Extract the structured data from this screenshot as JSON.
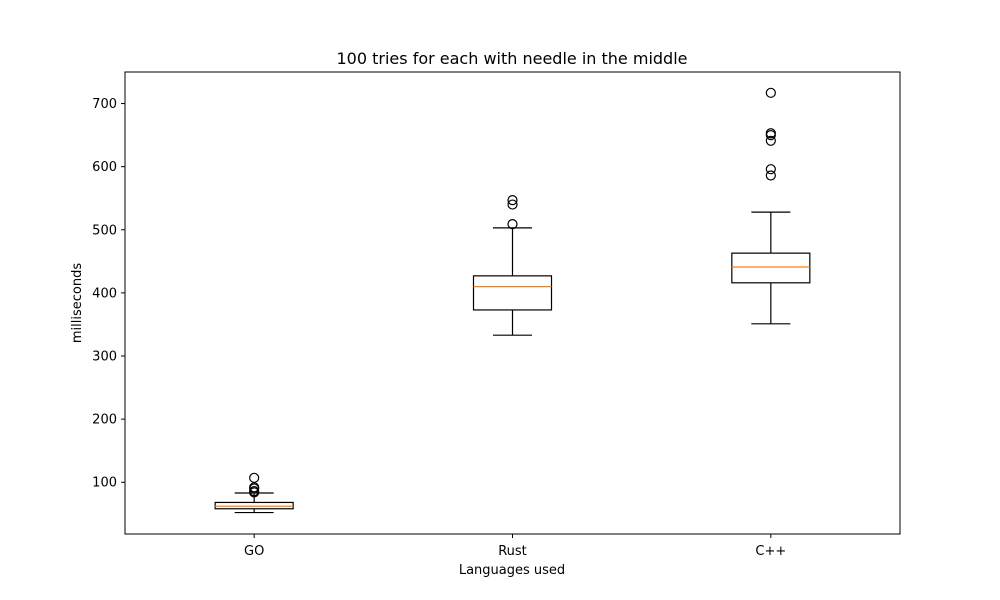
{
  "chart_data": {
    "type": "box",
    "title": "100 tries for each with needle in the middle",
    "xlabel": "Languages used",
    "ylabel": "milliseconds",
    "categories": [
      "GO",
      "Rust",
      "C++"
    ],
    "ylim": [
      18,
      750
    ],
    "yticks": [
      100,
      200,
      300,
      400,
      500,
      600,
      700
    ],
    "grid": false,
    "boxes": [
      {
        "category": "GO",
        "whisker_low": 52,
        "q1": 58,
        "median": 62,
        "q3": 68,
        "whisker_high": 83,
        "outliers": [
          84,
          86,
          90,
          92,
          107
        ]
      },
      {
        "category": "Rust",
        "whisker_low": 333,
        "q1": 373,
        "median": 410,
        "q3": 427,
        "whisker_high": 503,
        "outliers": [
          509,
          540,
          547
        ]
      },
      {
        "category": "C++",
        "whisker_low": 351,
        "q1": 416,
        "median": 441,
        "q3": 463,
        "whisker_high": 528,
        "outliers": [
          586,
          596,
          641,
          650,
          653,
          717
        ]
      }
    ]
  }
}
